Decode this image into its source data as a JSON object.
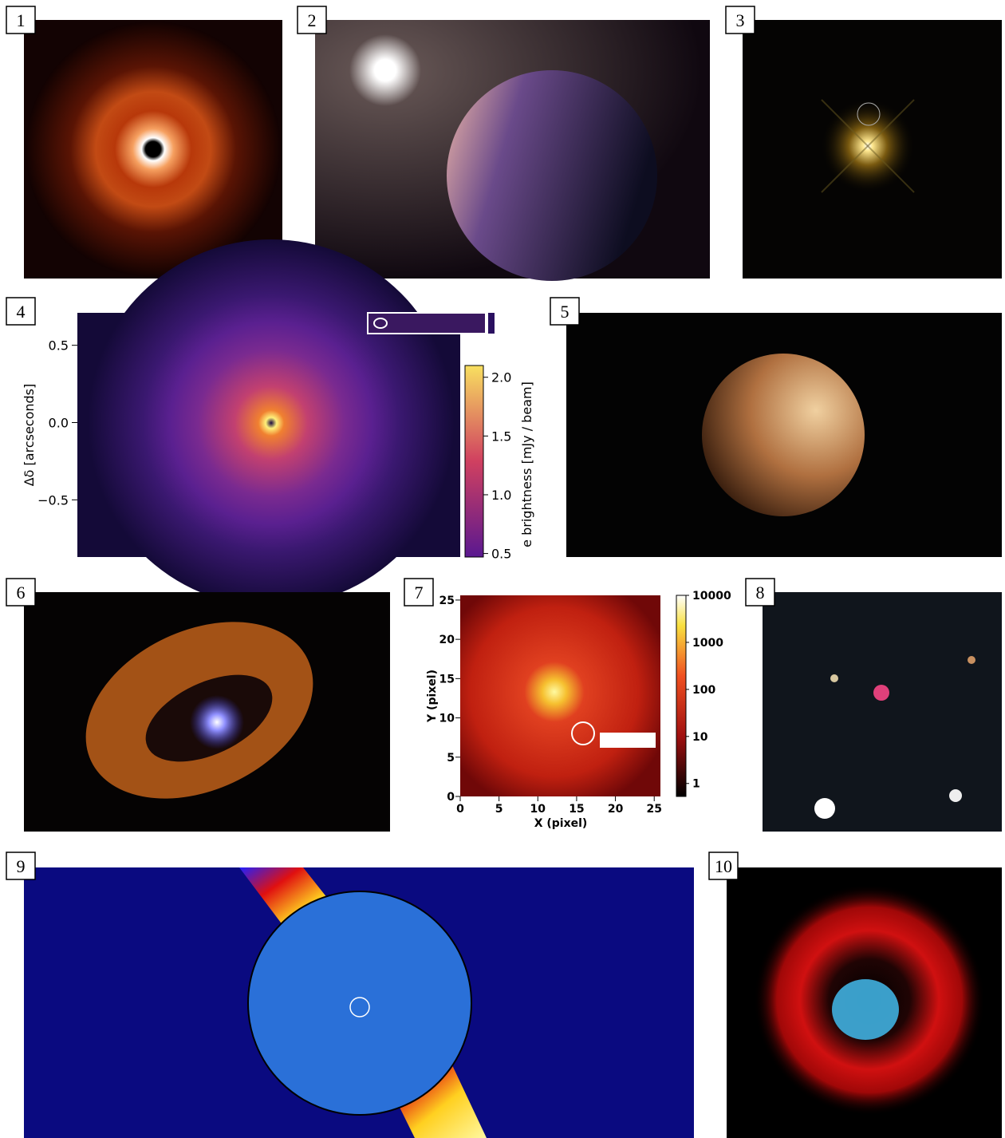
{
  "panels": [
    {
      "label": "1"
    },
    {
      "label": "2"
    },
    {
      "label": "3"
    },
    {
      "label": "4"
    },
    {
      "label": "5"
    },
    {
      "label": "6"
    },
    {
      "label": "7"
    },
    {
      "label": "8"
    },
    {
      "label": "9"
    },
    {
      "label": "10"
    }
  ],
  "panel4": {
    "ylabel": "Δδ  [arcseconds]",
    "ylim": [
      -0.87,
      0.71
    ],
    "yticks": [
      0.5,
      {
        "value": 0,
        "label": "0.0"
      },
      {
        "value": -0.5,
        "label": "−0.5"
      }
    ],
    "colorbar": {
      "label": "e brightness [mJy / beam]",
      "lim": [
        0.47,
        2.1
      ],
      "ticks": [
        {
          "value": 2,
          "label": "2.0"
        },
        1.5,
        {
          "value": 1,
          "label": "1.0"
        },
        0.5
      ]
    }
  },
  "panel7": {
    "xlabel": "X (pixel)",
    "ylabel": "Y (pixel)",
    "xlim": [
      0,
      25.8
    ],
    "ylim": [
      0,
      25.6
    ],
    "xticks": [
      0,
      5,
      10,
      15,
      20,
      25
    ],
    "yticks": [
      0,
      5,
      10,
      15,
      20,
      25
    ],
    "colorbar": {
      "lim": [
        0.53,
        10000
      ],
      "log": true,
      "ticks": [
        1,
        10,
        100,
        1000,
        10000
      ]
    }
  }
}
